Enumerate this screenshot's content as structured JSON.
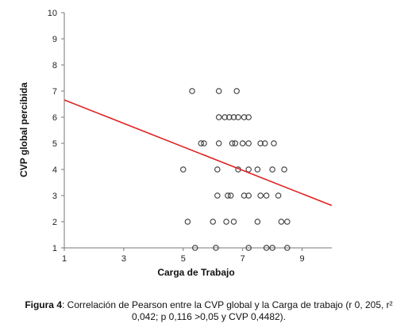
{
  "chart_data": {
    "type": "scatter",
    "title": "",
    "xlabel": "Carga de Trabajo",
    "ylabel": "CVP global percibida",
    "xlim": [
      1,
      10
    ],
    "ylim": [
      1,
      10
    ],
    "xticks": [
      1,
      3,
      5,
      7,
      9
    ],
    "yticks": [
      1,
      2,
      3,
      4,
      5,
      6,
      7,
      8,
      9,
      10
    ],
    "grid": false,
    "legend": "none",
    "marker_color": "#3a3a3a",
    "trendline_color": "#e02020",
    "points": [
      {
        "x": 5.3,
        "y": 7
      },
      {
        "x": 6.2,
        "y": 7
      },
      {
        "x": 6.8,
        "y": 7
      },
      {
        "x": 6.2,
        "y": 6
      },
      {
        "x": 6.4,
        "y": 6
      },
      {
        "x": 6.55,
        "y": 6
      },
      {
        "x": 6.7,
        "y": 6
      },
      {
        "x": 6.85,
        "y": 6
      },
      {
        "x": 7.05,
        "y": 6
      },
      {
        "x": 7.2,
        "y": 6
      },
      {
        "x": 5.6,
        "y": 5
      },
      {
        "x": 5.7,
        "y": 5
      },
      {
        "x": 6.2,
        "y": 5
      },
      {
        "x": 6.65,
        "y": 5
      },
      {
        "x": 6.75,
        "y": 5
      },
      {
        "x": 7.0,
        "y": 5
      },
      {
        "x": 7.2,
        "y": 5
      },
      {
        "x": 7.6,
        "y": 5
      },
      {
        "x": 7.75,
        "y": 5
      },
      {
        "x": 8.05,
        "y": 5
      },
      {
        "x": 5.0,
        "y": 4
      },
      {
        "x": 6.15,
        "y": 4
      },
      {
        "x": 6.85,
        "y": 4
      },
      {
        "x": 7.2,
        "y": 4
      },
      {
        "x": 7.5,
        "y": 4
      },
      {
        "x": 8.0,
        "y": 4
      },
      {
        "x": 8.4,
        "y": 4
      },
      {
        "x": 6.15,
        "y": 3
      },
      {
        "x": 6.5,
        "y": 3
      },
      {
        "x": 6.6,
        "y": 3
      },
      {
        "x": 7.05,
        "y": 3
      },
      {
        "x": 7.2,
        "y": 3
      },
      {
        "x": 7.6,
        "y": 3
      },
      {
        "x": 7.8,
        "y": 3
      },
      {
        "x": 8.2,
        "y": 3
      },
      {
        "x": 5.15,
        "y": 2
      },
      {
        "x": 6.0,
        "y": 2
      },
      {
        "x": 6.45,
        "y": 2
      },
      {
        "x": 6.7,
        "y": 2
      },
      {
        "x": 7.5,
        "y": 2
      },
      {
        "x": 8.3,
        "y": 2
      },
      {
        "x": 8.5,
        "y": 2
      },
      {
        "x": 5.4,
        "y": 1
      },
      {
        "x": 6.1,
        "y": 1
      },
      {
        "x": 7.2,
        "y": 1
      },
      {
        "x": 7.8,
        "y": 1
      },
      {
        "x": 8.0,
        "y": 1
      },
      {
        "x": 8.5,
        "y": 1
      }
    ],
    "trendline": {
      "x": [
        1,
        10
      ],
      "y": [
        6.66,
        2.62
      ]
    }
  },
  "caption": {
    "label": "Figura 4",
    "text": ": Correlación de Pearson entre la CVP global y la Carga de trabajo (r 0, 205, r² 0,042; p 0,116 >0,05 y  CVP 0,4482)."
  }
}
